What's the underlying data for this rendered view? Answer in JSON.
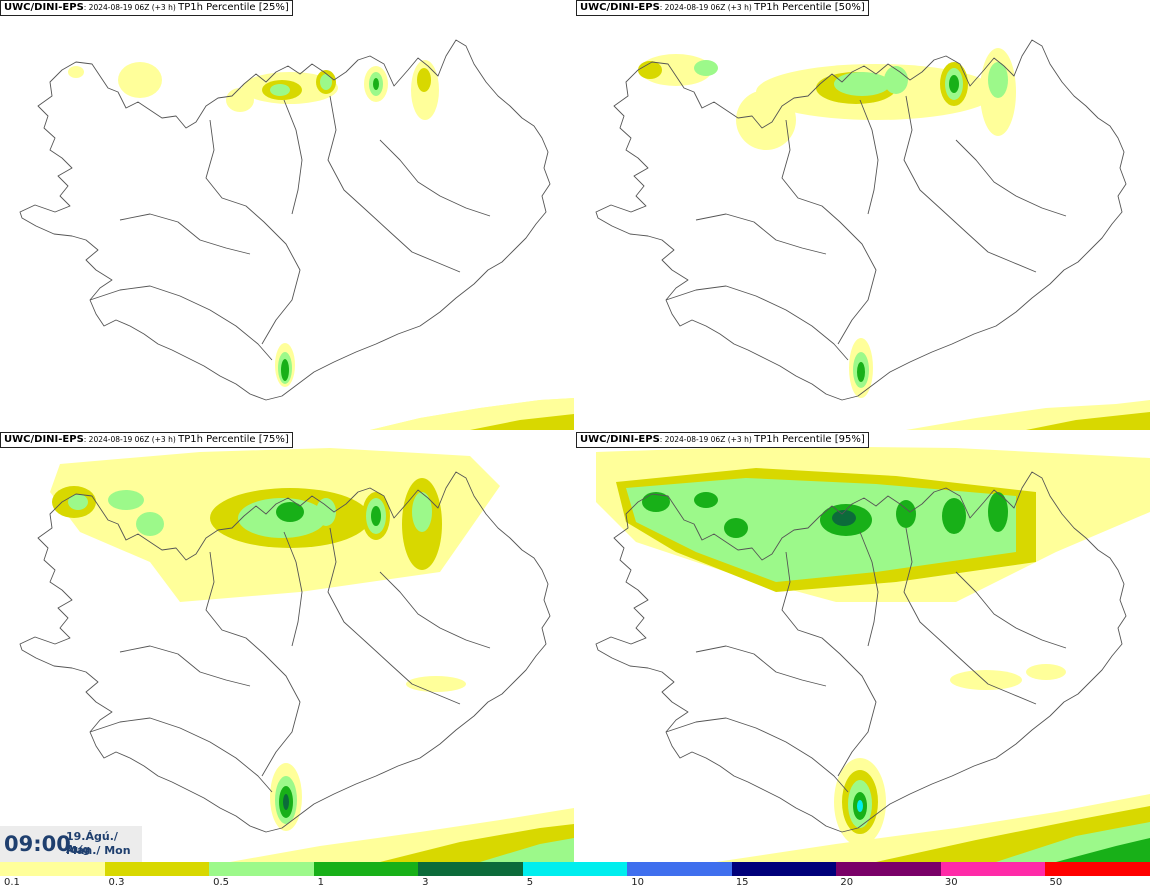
{
  "panels": [
    {
      "model": "UWC/DINI-EPS",
      "run": ": 2024-08-19 06Z (+3 h) ",
      "field": "TP1h Percentile [25%]",
      "percentile": 25
    },
    {
      "model": "UWC/DINI-EPS",
      "run": ": 2024-08-19 06Z (+3 h) ",
      "field": "TP1h Percentile [50%]",
      "percentile": 50
    },
    {
      "model": "UWC/DINI-EPS",
      "run": ": 2024-08-19 06Z (+3 h) ",
      "field": "TP1h Percentile [75%]",
      "percentile": 75
    },
    {
      "model": "UWC/DINI-EPS",
      "run": ": 2024-08-19 06Z (+3 h) ",
      "field": "TP1h Percentile [95%]",
      "percentile": 95
    }
  ],
  "valid_time": {
    "time": "09:00",
    "date_line": "19.Ágú./ Aug",
    "day_line": "Mán./ Mon"
  },
  "legend": {
    "colors": [
      "#ffff9a",
      "#d8d800",
      "#9cf98a",
      "#18b018",
      "#0c6b3a",
      "#00eeee",
      "#3f6fee",
      "#00007a",
      "#7a0068",
      "#ff2aa8",
      "#ff0000"
    ],
    "labels": [
      "0.1",
      "0.3",
      "0.5",
      "1",
      "3",
      "5",
      "10",
      "15",
      "20",
      "30",
      "50"
    ]
  }
}
